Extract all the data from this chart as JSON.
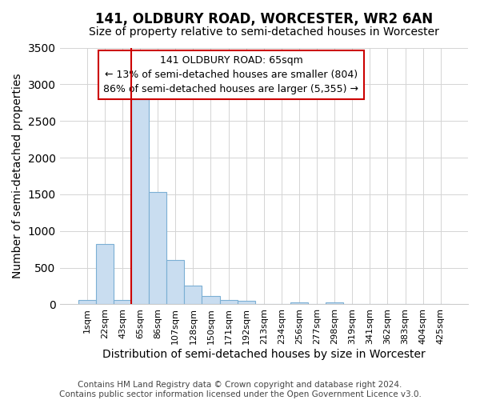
{
  "title": "141, OLDBURY ROAD, WORCESTER, WR2 6AN",
  "subtitle": "Size of property relative to semi-detached houses in Worcester",
  "xlabel": "Distribution of semi-detached houses by size in Worcester",
  "ylabel": "Number of semi-detached properties",
  "bar_labels": [
    "1sqm",
    "22sqm",
    "43sqm",
    "65sqm",
    "86sqm",
    "107sqm",
    "128sqm",
    "150sqm",
    "171sqm",
    "192sqm",
    "213sqm",
    "234sqm",
    "256sqm",
    "277sqm",
    "298sqm",
    "319sqm",
    "341sqm",
    "362sqm",
    "383sqm",
    "404sqm",
    "425sqm"
  ],
  "bar_values": [
    60,
    820,
    60,
    2800,
    1530,
    600,
    260,
    110,
    55,
    50,
    0,
    0,
    30,
    0,
    30,
    0,
    0,
    0,
    0,
    0,
    0
  ],
  "bar_color": "#c9ddf0",
  "bar_edge_color": "#7bafd4",
  "vline_color": "#cc0000",
  "ylim": [
    0,
    3500
  ],
  "annotation_title": "141 OLDBURY ROAD: 65sqm",
  "annotation_line1": "← 13% of semi-detached houses are smaller (804)",
  "annotation_line2": "86% of semi-detached houses are larger (5,355) →",
  "annotation_box_color": "#ffffff",
  "annotation_box_edge": "#cc0000",
  "footer_line1": "Contains HM Land Registry data © Crown copyright and database right 2024.",
  "footer_line2": "Contains public sector information licensed under the Open Government Licence v3.0.",
  "title_fontsize": 12,
  "subtitle_fontsize": 10,
  "axis_label_fontsize": 10,
  "tick_fontsize": 8,
  "annotation_fontsize": 9,
  "footer_fontsize": 7.5,
  "yticks": [
    0,
    500,
    1000,
    1500,
    2000,
    2500,
    3000,
    3500
  ],
  "vline_index": 3
}
